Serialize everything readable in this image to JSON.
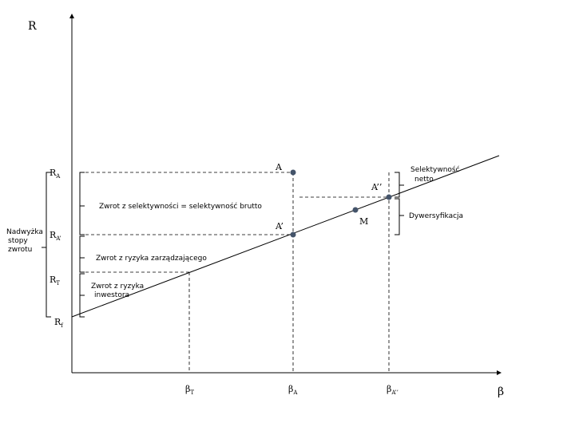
{
  "axes": {
    "y_label": "R",
    "x_label": "β"
  },
  "y_labels": [
    {
      "main": "R",
      "sub": "A"
    },
    {
      "main": "R",
      "sub": "A’"
    },
    {
      "main": "R",
      "sub": "T"
    },
    {
      "main": "R",
      "sub": "f"
    }
  ],
  "x_labels": [
    {
      "main": "β",
      "sub": "T"
    },
    {
      "main": "β",
      "sub": "A"
    },
    {
      "main": "β",
      "sub": "A’’"
    }
  ],
  "points": [
    "A",
    "A’",
    "M",
    "A’’"
  ],
  "annotations": {
    "selectivity_gross": "Zwrot z selektywności = selektywność brutto",
    "manager_risk": "Zwrot z ryzyka zarządzającego",
    "investor_risk": [
      "Zwrot z ryzyka",
      "inwestora"
    ],
    "excess_return": [
      "Nadwyżka",
      "stopy",
      "zwrotu"
    ],
    "net_selectivity": [
      "Selektywność",
      "netto"
    ],
    "diversification": "Dywersyfikacja"
  }
}
